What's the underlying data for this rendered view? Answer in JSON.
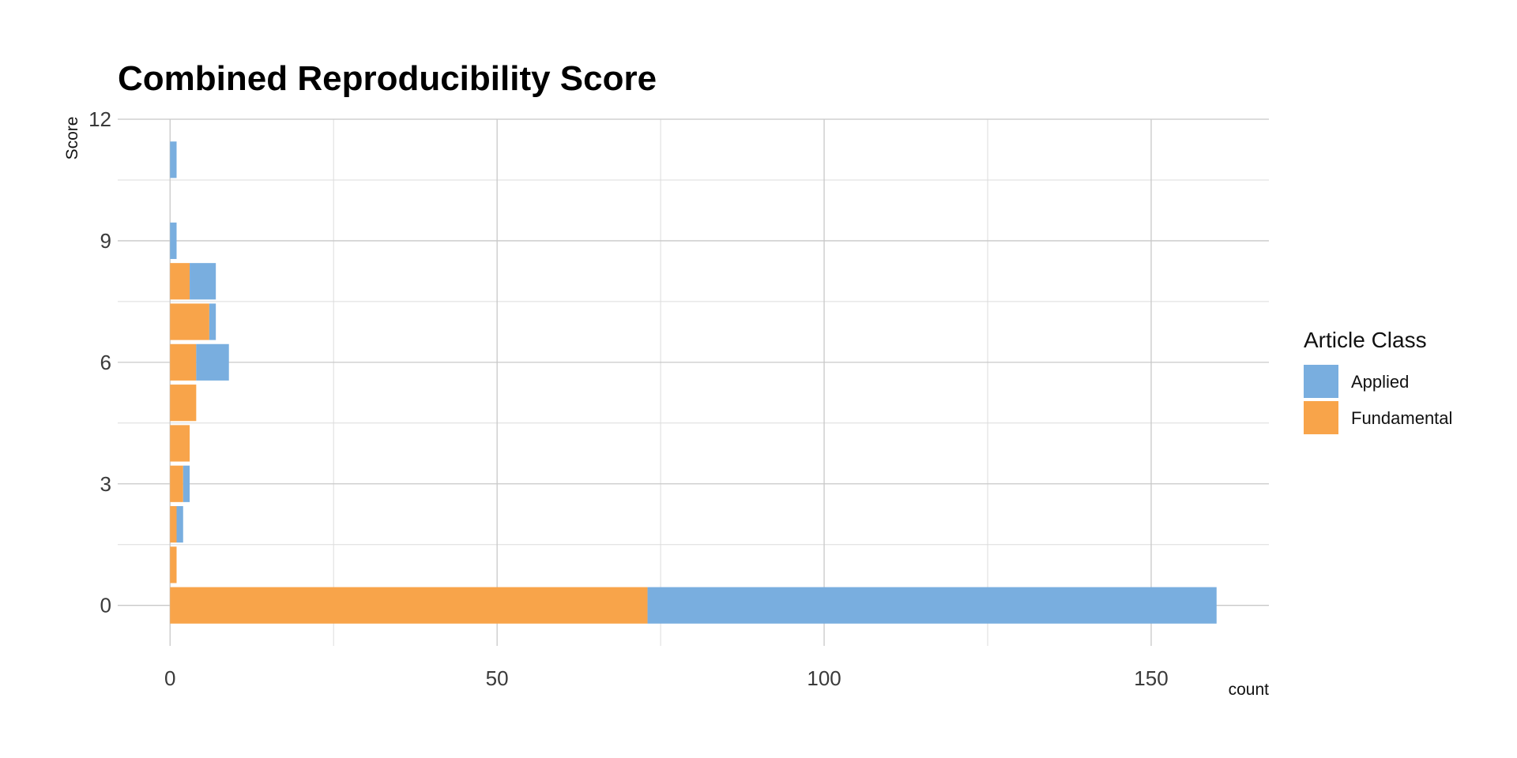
{
  "chart_data": {
    "type": "bar",
    "orientation": "horizontal",
    "stacked": true,
    "title": "Combined Reproducibility Score",
    "xlabel": "count",
    "ylabel": "Score",
    "xlim": [
      -8,
      168
    ],
    "ylim": [
      -1,
      12
    ],
    "x_ticks": [
      0,
      50,
      100,
      150
    ],
    "x_minor_ticks": [
      25,
      75,
      125
    ],
    "y_ticks": [
      0,
      3,
      6,
      9,
      12
    ],
    "y_minor_ticks": [
      1.5,
      4.5,
      7.5,
      10.5
    ],
    "grid": true,
    "legend": {
      "title": "Article Class",
      "position": "right"
    },
    "categories": [
      0,
      1,
      2,
      3,
      4,
      5,
      6,
      7,
      8,
      9,
      11
    ],
    "series": [
      {
        "name": "Fundamental",
        "color": "#f8a44a",
        "values": [
          73,
          1,
          1,
          2,
          3,
          4,
          4,
          6,
          3,
          0,
          0
        ]
      },
      {
        "name": "Applied",
        "color": "#79aedf",
        "values": [
          87,
          0,
          1,
          1,
          0,
          0,
          5,
          1,
          4,
          1,
          1
        ]
      }
    ]
  }
}
